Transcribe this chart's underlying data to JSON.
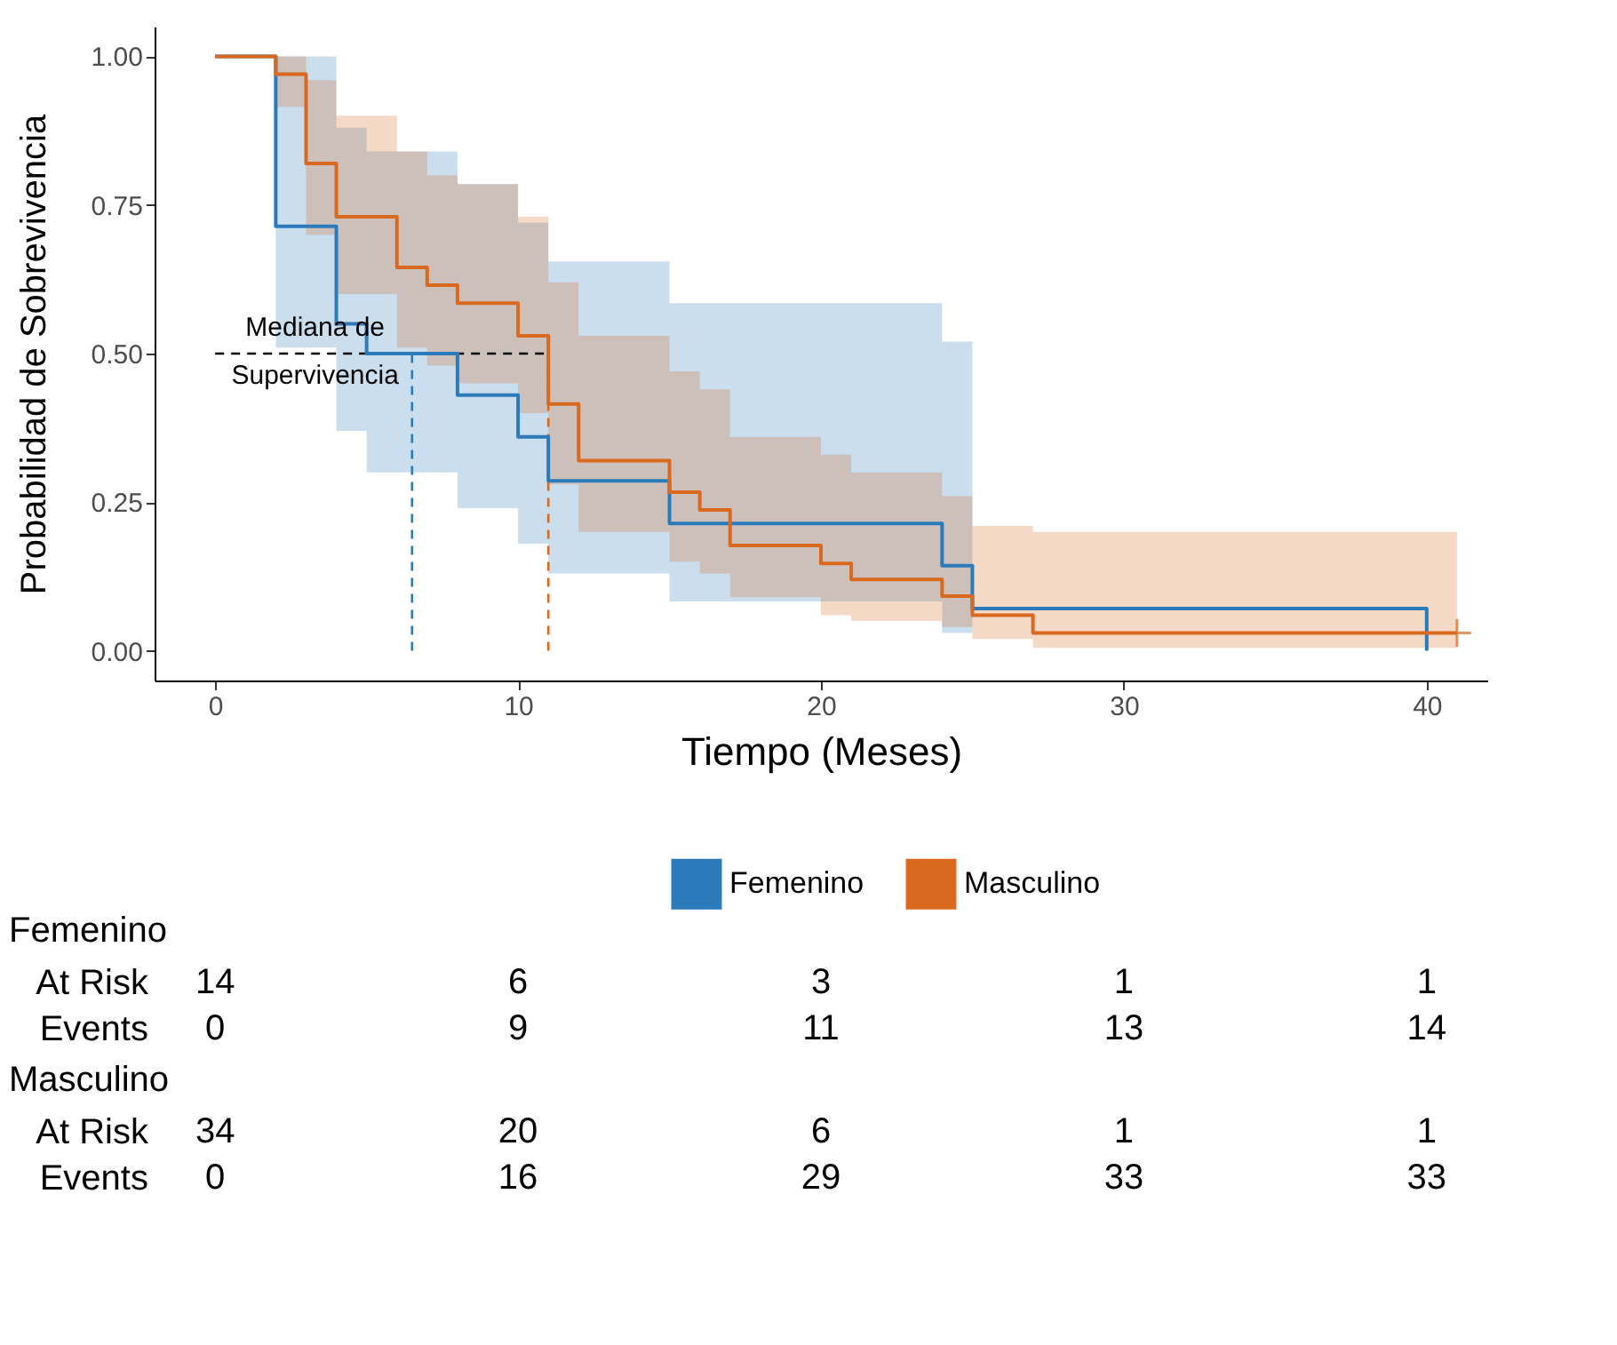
{
  "chart_data": [
    {
      "type": "step",
      "xlabel": "Tiempo (Meses)",
      "ylabel": "Probabilidad de Sobrevivencia",
      "xlim": [
        -2,
        42
      ],
      "ylim": [
        -0.05,
        1.05
      ],
      "xticks": [
        0,
        10,
        20,
        30,
        40
      ],
      "yticks": [
        {
          "value": 0,
          "label": "0.00"
        },
        {
          "value": 0.25,
          "label": "0.25"
        },
        {
          "value": 0.5,
          "label": "0.50"
        },
        {
          "value": 0.75,
          "label": "0.75"
        },
        {
          "value": 1,
          "label": "1.00"
        }
      ],
      "grid": false,
      "legend": "bottom",
      "line_style": "solid",
      "series": [
        {
          "name": "Femenino",
          "type": "step",
          "color": "#2b7bba",
          "x": [
            0,
            2,
            4,
            5,
            8,
            10,
            11,
            15,
            24,
            25,
            40
          ],
          "values": [
            1,
            0.714,
            0.55,
            0.5,
            0.43,
            0.36,
            0.286,
            0.214,
            0.143,
            0.071,
            0
          ],
          "lower": [
            1,
            0.51,
            0.37,
            0.3,
            0.24,
            0.18,
            0.13,
            0.083,
            0.03,
            0.03,
            null
          ],
          "upper": [
            1,
            1,
            0.88,
            0.84,
            0.785,
            0.72,
            0.655,
            0.585,
            0.52,
            0.52,
            null
          ]
        },
        {
          "name": "Masculino",
          "type": "step",
          "color": "#d9691e",
          "x": [
            0,
            2,
            3,
            4,
            6,
            7,
            8,
            10,
            11,
            12,
            15,
            16,
            17,
            20,
            21,
            24,
            25,
            27,
            41
          ],
          "values": [
            1,
            0.97,
            0.82,
            0.73,
            0.645,
            0.615,
            0.585,
            0.53,
            0.415,
            0.32,
            0.267,
            0.237,
            0.177,
            0.147,
            0.12,
            0.092,
            0.06,
            0.03,
            0.03
          ],
          "lower": [
            1,
            0.915,
            0.7,
            0.6,
            0.51,
            0.48,
            0.45,
            0.4,
            0.28,
            0.2,
            0.15,
            0.13,
            0.09,
            0.06,
            0.05,
            0.04,
            0.02,
            0.005,
            0.005
          ],
          "upper": [
            1,
            1,
            0.96,
            0.9,
            0.84,
            0.8,
            0.785,
            0.73,
            0.62,
            0.53,
            0.47,
            0.44,
            0.36,
            0.33,
            0.3,
            0.26,
            0.21,
            0.2,
            0.2
          ]
        },
        {
          "type": "scatter",
          "marker": "cross",
          "color": "#d9691e",
          "x": [
            41
          ],
          "values": [
            0.03
          ]
        }
      ],
      "ref_lines": [
        {
          "axis": "y",
          "value": 0.5,
          "color": "#000000",
          "line_style": "dashed"
        },
        {
          "axis": "x",
          "value": 6.5,
          "color": "#2b7bba",
          "line_style": "dashed"
        },
        {
          "axis": "x",
          "value": 11,
          "color": "#d9691e",
          "line_style": "dashed"
        }
      ],
      "annotations": [
        {
          "text": "Mediana de Supervivencia",
          "x": 3.3,
          "y": 0.5
        }
      ]
    },
    {
      "type": "heatmap",
      "title": "Femenino",
      "categories": [
        "0",
        "10",
        "20",
        "30",
        "40"
      ],
      "tick_labels": "y",
      "y_categories": [
        "At Risk",
        "Events"
      ],
      "cells": [
        [
          14,
          6,
          3,
          1,
          1
        ],
        [
          0,
          9,
          11,
          13,
          14
        ]
      ],
      "data_labels": true
    },
    {
      "type": "heatmap",
      "title": "Masculino",
      "categories": [
        "0",
        "10",
        "20",
        "30",
        "40"
      ],
      "tick_labels": "y",
      "y_categories": [
        "At Risk",
        "Events"
      ],
      "cells": [
        [
          34,
          20,
          6,
          1,
          1
        ],
        [
          0,
          16,
          29,
          33,
          33
        ]
      ],
      "data_labels": true
    }
  ]
}
